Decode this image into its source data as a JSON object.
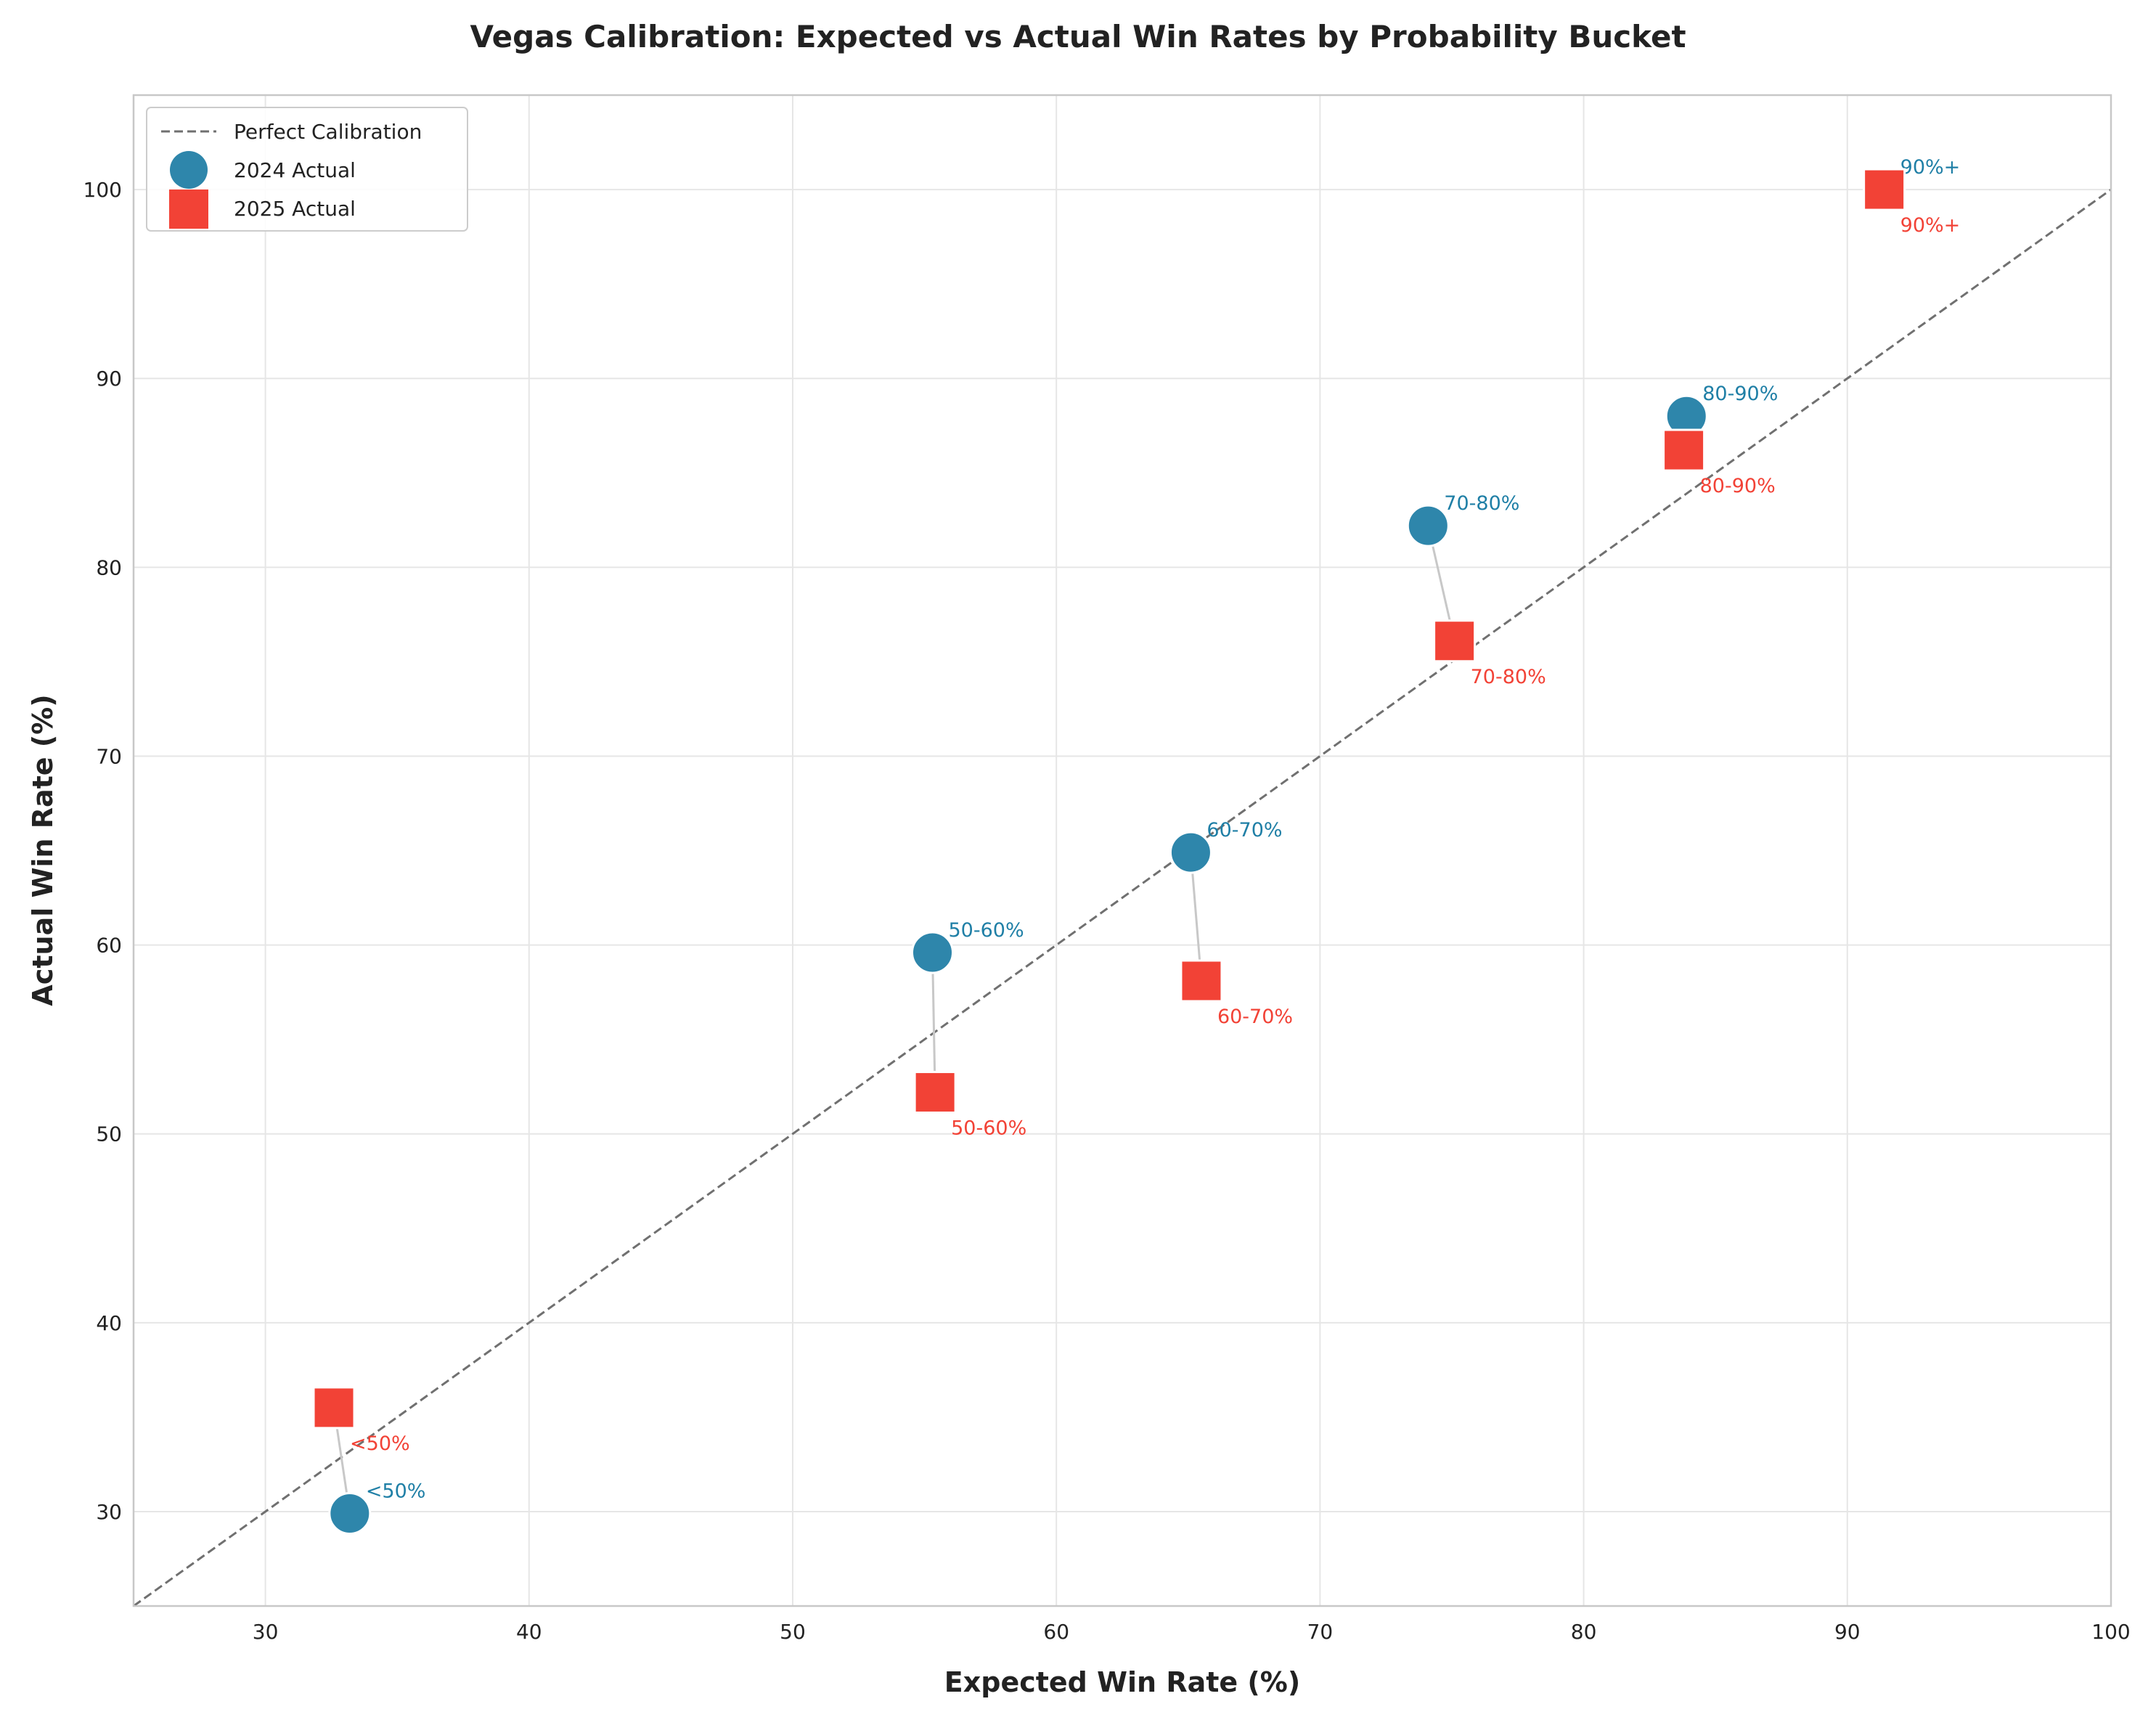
{
  "chart_data": {
    "type": "scatter",
    "title": "Vegas Calibration: Expected vs Actual Win Rates by Probability Bucket",
    "xlabel": "Expected Win Rate (%)",
    "ylabel": "Actual Win Rate (%)",
    "xlim": [
      25,
      100
    ],
    "ylim": [
      25,
      105
    ],
    "xticks": [
      30,
      40,
      50,
      60,
      70,
      80,
      90,
      100
    ],
    "yticks": [
      30,
      40,
      50,
      60,
      70,
      80,
      90,
      100
    ],
    "grid": true,
    "legend_position": "top-left",
    "reference_line": {
      "name": "Perfect Calibration",
      "from": [
        25,
        25
      ],
      "to": [
        100,
        100
      ],
      "color": "#707070",
      "style": "dashed"
    },
    "series": [
      {
        "name": "2024 Actual",
        "marker": "circle",
        "color": "#2E86AB",
        "label_color": "#1F7FA6",
        "points": [
          {
            "label": "<50%",
            "x": 33.2,
            "y": 29.9
          },
          {
            "label": "50-60%",
            "x": 55.3,
            "y": 59.6
          },
          {
            "label": "60-70%",
            "x": 65.1,
            "y": 64.9
          },
          {
            "label": "70-80%",
            "x": 74.1,
            "y": 82.2
          },
          {
            "label": "80-90%",
            "x": 83.9,
            "y": 88.0
          },
          {
            "label": "90%+",
            "x": 91.4,
            "y": 100.0
          }
        ]
      },
      {
        "name": "2025 Actual",
        "marker": "square",
        "color": "#F24236",
        "label_color": "#F24236",
        "points": [
          {
            "label": "<50%",
            "x": 32.6,
            "y": 35.5
          },
          {
            "label": "50-60%",
            "x": 55.4,
            "y": 52.2
          },
          {
            "label": "60-70%",
            "x": 65.5,
            "y": 58.1
          },
          {
            "label": "70-80%",
            "x": 75.1,
            "y": 76.1
          },
          {
            "label": "80-90%",
            "x": 83.8,
            "y": 86.2
          },
          {
            "label": "90%+",
            "x": 91.4,
            "y": 100.0
          }
        ]
      }
    ]
  }
}
